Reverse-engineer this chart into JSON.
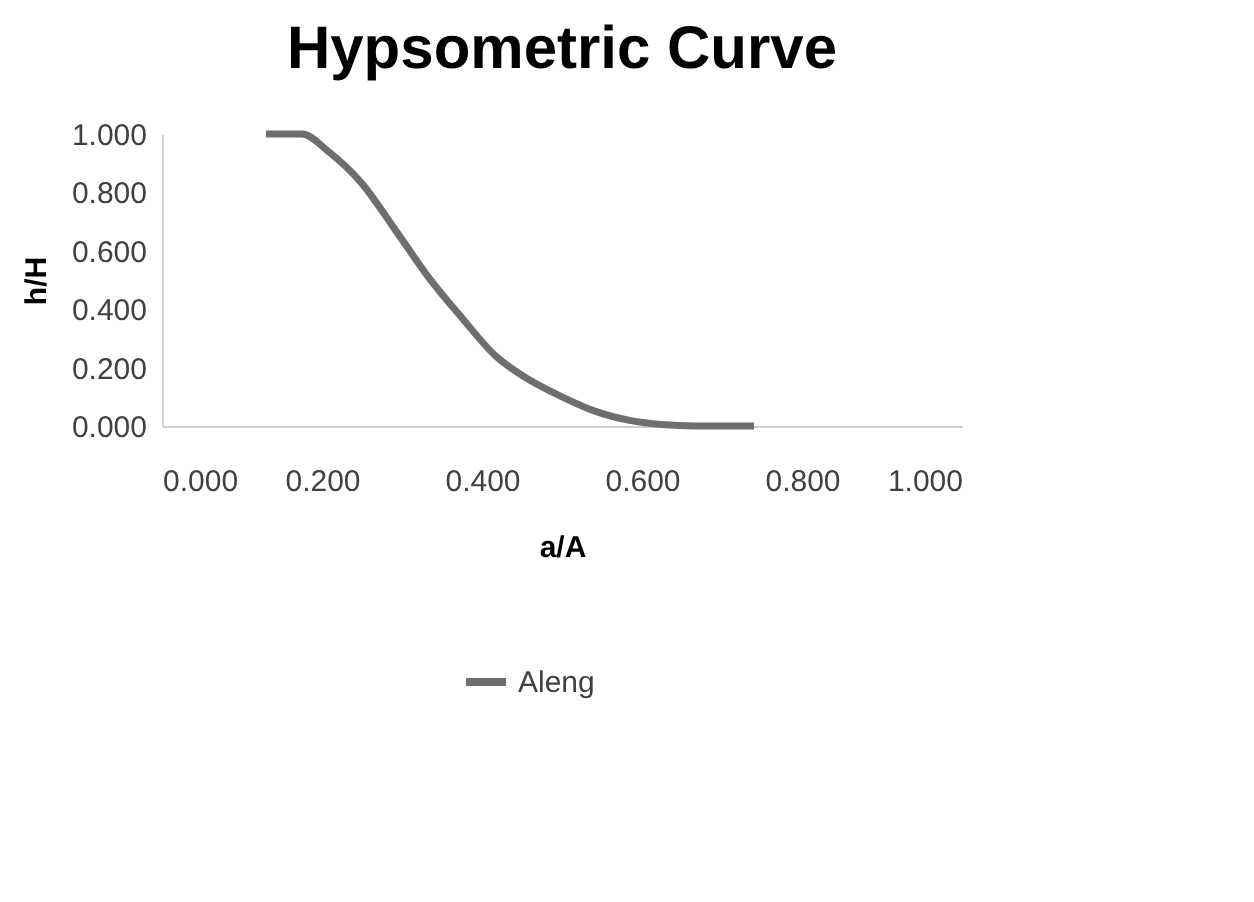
{
  "chart_data": {
    "type": "line",
    "title": "Hypsometric Curve",
    "xlabel": "a/A",
    "ylabel": "h/H",
    "xlim": [
      0,
      1
    ],
    "ylim": [
      0,
      1
    ],
    "xticks": [
      {
        "value": 0,
        "label": "0.000"
      },
      {
        "value": 0.2,
        "label": "0.200"
      },
      {
        "value": 0.4,
        "label": "0.400"
      },
      {
        "value": 0.6,
        "label": "0.600"
      },
      {
        "value": 0.8,
        "label": "0.800"
      },
      {
        "value": 1,
        "label": "1.000"
      }
    ],
    "yticks": [
      {
        "value": 0,
        "label": "0.000"
      },
      {
        "value": 0.2,
        "label": "0.200"
      },
      {
        "value": 0.4,
        "label": "0.400"
      },
      {
        "value": 0.6,
        "label": "0.600"
      },
      {
        "value": 0.8,
        "label": "0.800"
      },
      {
        "value": 1,
        "label": "1.000"
      }
    ],
    "grid": false,
    "legend": "bottom",
    "marker": "none",
    "line_style": "solid",
    "x": [
      0.13,
      0.175,
      0.208,
      0.25,
      0.292,
      0.333,
      0.375,
      0.417,
      0.458,
      0.5,
      0.542,
      0.583,
      0.625,
      0.667,
      0.74
    ],
    "series": [
      {
        "name": "Aleng",
        "color": "#6e6e6e",
        "values": [
          1.0,
          1.0,
          0.94,
          0.83,
          0.67,
          0.51,
          0.37,
          0.24,
          0.16,
          0.1,
          0.05,
          0.02,
          0.005,
          0,
          0
        ]
      }
    ]
  }
}
